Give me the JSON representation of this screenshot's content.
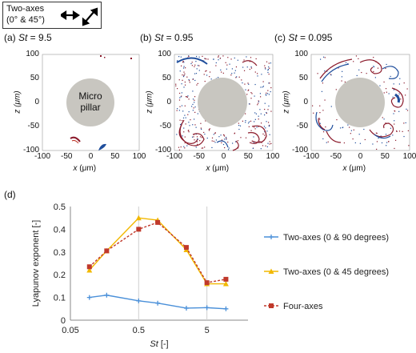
{
  "legend_box": {
    "line1": "Two-axes",
    "line2": "(0° & 45°)"
  },
  "panels": [
    {
      "label": "(a) ",
      "st_symbol": "St",
      "st_value": " = 9.5",
      "pillar_text_1": "Micro",
      "pillar_text_2": "pillar"
    },
    {
      "label": "(b) ",
      "st_symbol": "St",
      "st_value": " = 0.95"
    },
    {
      "label": "(c) ",
      "st_symbol": "St",
      "st_value": " = 0.095"
    }
  ],
  "snapshot_axes": {
    "y_ticks": [
      "100",
      "50",
      "0",
      "-50",
      "-100"
    ],
    "x_ticks": [
      "-100",
      "-50",
      "0",
      "50",
      "100"
    ],
    "xlabel_sym": "x",
    "xlabel_unit": " (μm)",
    "ylabel": "z (μm)"
  },
  "chart_panel_label": "(d)",
  "colors": {
    "two_axes_90": "#4a90d9",
    "two_axes_45": "#f2b800",
    "four_axes": "#c0392b",
    "pillar": "#c8c6c0",
    "particle_red": "#8b1a2b",
    "particle_blue": "#1f4e9c"
  },
  "chart_data": {
    "type": "line",
    "ylabel": "Lyapunov exponent [-]",
    "xlabel": "St [-]",
    "xscale": "log",
    "xlim": [
      0.05,
      20
    ],
    "ylim": [
      0,
      0.5
    ],
    "x_ticks": [
      "0.05",
      "0.5",
      "5"
    ],
    "y_ticks": [
      "0",
      "0.1",
      "0.2",
      "0.3",
      "0.4",
      "0.5"
    ],
    "vertical_gridlines_at": [
      0.5,
      5
    ],
    "series": [
      {
        "name": "Two-axes  (0 & 90 degrees)",
        "marker": "plus",
        "x": [
          0.095,
          0.17,
          0.5,
          0.95,
          2.5,
          5,
          9.5
        ],
        "y": [
          0.1,
          0.11,
          0.085,
          0.075,
          0.053,
          0.055,
          0.05
        ]
      },
      {
        "name": "Two-axes  (0 & 45 degrees)",
        "marker": "triangle",
        "x": [
          0.095,
          0.17,
          0.5,
          0.95,
          2.5,
          5,
          9.5
        ],
        "y": [
          0.22,
          0.305,
          0.45,
          0.44,
          0.31,
          0.16,
          0.16
        ]
      },
      {
        "name": "Four-axes",
        "marker": "square",
        "x": [
          0.095,
          0.17,
          0.5,
          0.95,
          2.5,
          5,
          9.5
        ],
        "y": [
          0.235,
          0.305,
          0.4,
          0.43,
          0.32,
          0.165,
          0.18
        ]
      }
    ]
  }
}
